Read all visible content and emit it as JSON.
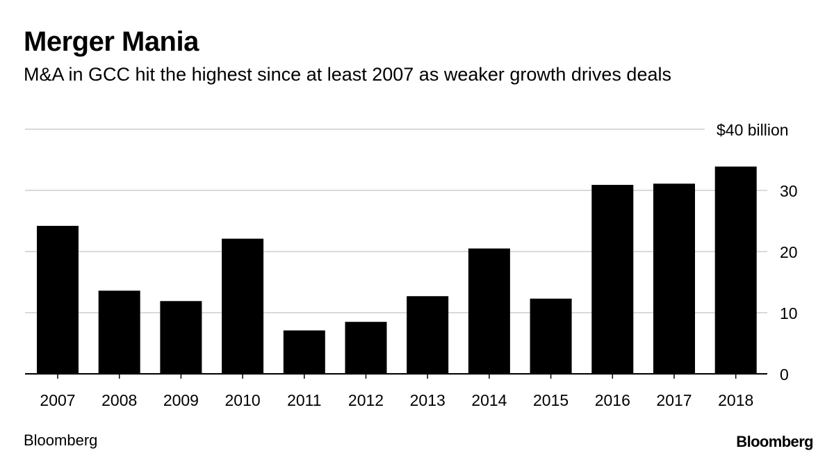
{
  "page": {
    "title": "Merger Mania",
    "subtitle": "M&A in GCC hit the highest since at least 2007 as weaker growth drives deals",
    "source": "Bloomberg",
    "logo_text": "Bloomberg"
  },
  "colors": {
    "bar": "#000000",
    "grid": "#d9d9d9",
    "axis": "#000000",
    "text": "#000000"
  },
  "chart_data": {
    "type": "bar",
    "title": "Merger Mania",
    "subtitle": "M&A in GCC hit the highest since at least 2007 as weaker growth drives deals",
    "xlabel": "",
    "ylabel": "",
    "categories": [
      "2007",
      "2008",
      "2009",
      "2010",
      "2011",
      "2012",
      "2013",
      "2014",
      "2015",
      "2016",
      "2017",
      "2018"
    ],
    "values": [
      24.2,
      13.6,
      11.9,
      22.1,
      7.1,
      8.5,
      12.7,
      20.5,
      12.3,
      30.9,
      31.1,
      33.9
    ],
    "ylim": [
      0,
      40
    ],
    "yticks": [
      0,
      10,
      20,
      30,
      40
    ],
    "ytick_labels": [
      "0",
      "10",
      "20",
      "30",
      "$40 billion"
    ],
    "grid": true,
    "y_axis_side": "right"
  }
}
